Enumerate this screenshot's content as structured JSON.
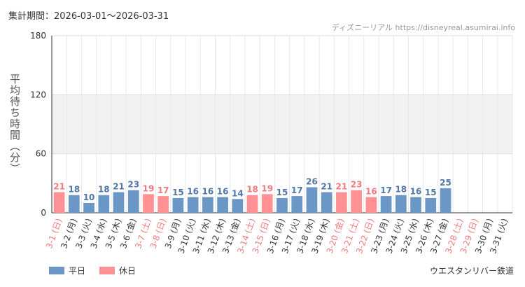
{
  "period_label": "集計期間：2026-03-01〜2026-03-31",
  "credit": "ディズニーリアル https://disneyreal.asumirai.info",
  "attraction": "ウエスタンリバー鉄道",
  "colors": {
    "weekday": "#6a97c6",
    "holiday": "#ff9194",
    "weekday_text": "#5077a8",
    "holiday_text": "#f07a7d"
  },
  "chart_data": {
    "type": "bar",
    "ylabel": "平均待ち時間（分）",
    "ylim": [
      0,
      180
    ],
    "yticks": [
      0,
      60,
      120,
      180
    ],
    "grid": true,
    "legend_position": "bottom-left",
    "legend": [
      {
        "key": "weekday",
        "label": "平日"
      },
      {
        "key": "holiday",
        "label": "休日"
      }
    ],
    "categories": [
      "3-1 (日)",
      "3-2 (月)",
      "3-3 (火)",
      "3-4 (水)",
      "3-5 (木)",
      "3-6 (金)",
      "3-7 (土)",
      "3-8 (日)",
      "3-9 (月)",
      "3-10 (火)",
      "3-11 (水)",
      "3-12 (木)",
      "3-13 (金)",
      "3-14 (土)",
      "3-15 (日)",
      "3-16 (月)",
      "3-17 (火)",
      "3-18 (水)",
      "3-19 (木)",
      "3-20 (金)",
      "3-21 (土)",
      "3-22 (日)",
      "3-23 (月)",
      "3-24 (火)",
      "3-25 (水)",
      "3-26 (木)",
      "3-27 (金)",
      "3-28 (土)",
      "3-29 (日)",
      "3-30 (月)",
      "3-31 (火)"
    ],
    "values": [
      21,
      18,
      10,
      18,
      21,
      23,
      19,
      17,
      15,
      16,
      16,
      16,
      14,
      18,
      19,
      15,
      17,
      26,
      21,
      21,
      23,
      16,
      17,
      18,
      16,
      15,
      25,
      null,
      null,
      null,
      null
    ],
    "day_type": [
      "holiday",
      "weekday",
      "weekday",
      "weekday",
      "weekday",
      "weekday",
      "holiday",
      "holiday",
      "weekday",
      "weekday",
      "weekday",
      "weekday",
      "weekday",
      "holiday",
      "holiday",
      "weekday",
      "weekday",
      "weekday",
      "weekday",
      "holiday",
      "holiday",
      "holiday",
      "weekday",
      "weekday",
      "weekday",
      "weekday",
      "weekday",
      "holiday",
      "holiday",
      "weekday",
      "weekday"
    ]
  }
}
